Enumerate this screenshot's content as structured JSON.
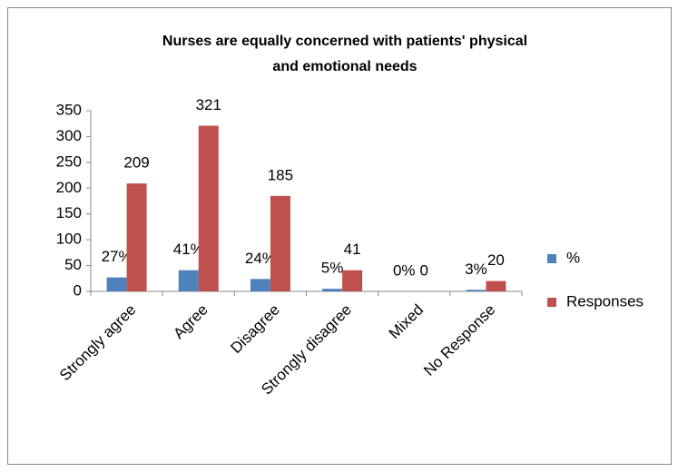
{
  "chart_data": {
    "type": "bar",
    "title": "Nurses are equally concerned with patients' physical and emotional needs",
    "categories": [
      "Strongly agree",
      "Agree",
      "Disagree",
      "Strongly disagree",
      "Mixed",
      "No Response"
    ],
    "series": [
      {
        "name": "%",
        "color": "#4f81bd",
        "values": [
          27,
          41,
          24,
          5,
          0,
          3
        ],
        "value_labels": [
          "27%",
          "41%",
          "24%",
          "5%",
          "0%",
          "3%"
        ]
      },
      {
        "name": "Responses",
        "color": "#c0504d",
        "values": [
          209,
          321,
          185,
          41,
          0,
          20
        ]
      }
    ],
    "ylim": [
      0,
      350
    ],
    "yticks": [
      0,
      50,
      100,
      150,
      200,
      250,
      300,
      350
    ],
    "grid": false,
    "legend": "right"
  }
}
